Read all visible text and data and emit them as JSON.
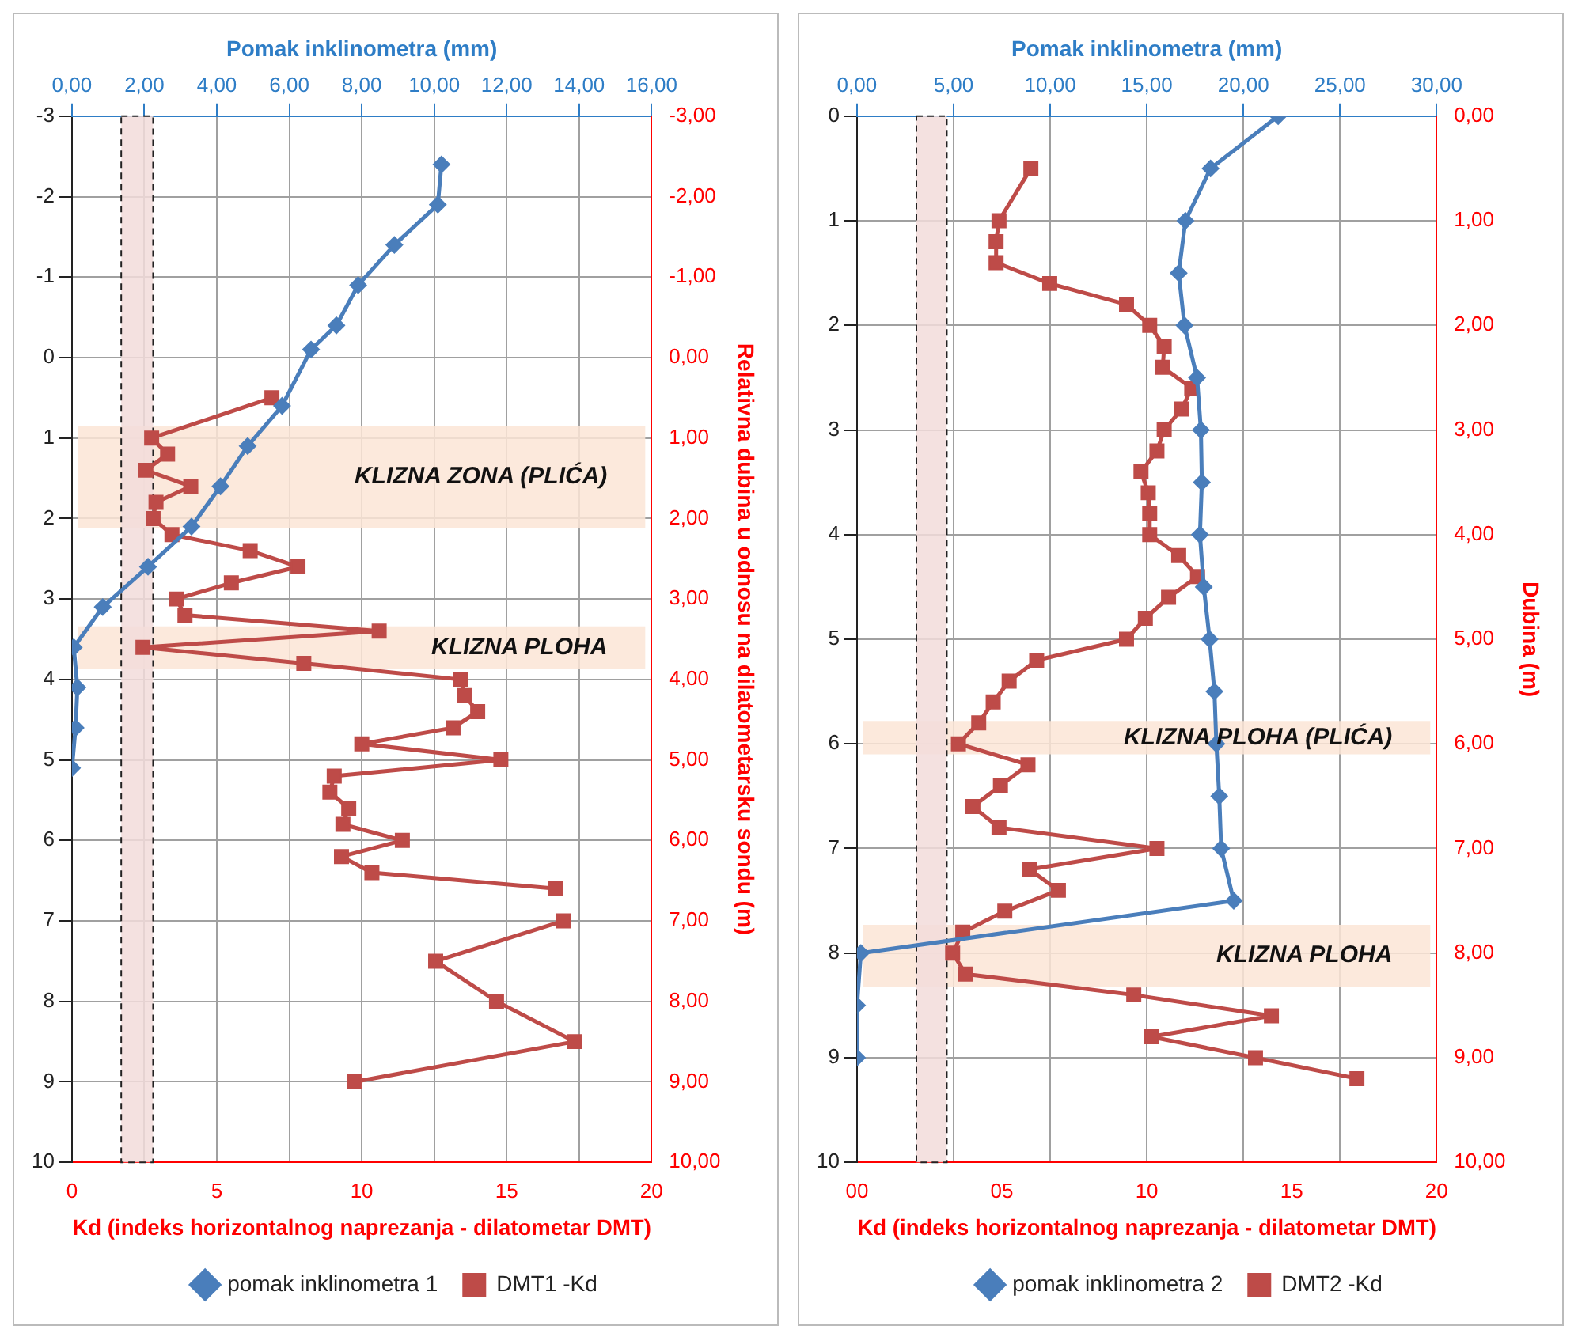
{
  "chart_data": [
    {
      "type": "line",
      "xlabel": "Kd (indeks horizontalnog naprezanja - dilatometar DMT)",
      "x2label": "Pomak inklinometra (mm)",
      "y2label": "Relativna dubina u odnosu na dilatometarsku sondu (m)",
      "xlim": [
        0,
        20
      ],
      "xticks": [
        0,
        5,
        10,
        15,
        20
      ],
      "x2lim": [
        0,
        16
      ],
      "x2ticks": [
        {
          "value": 0,
          "label": "0,00"
        },
        {
          "value": 2,
          "label": "2,00"
        },
        {
          "value": 4,
          "label": "4,00"
        },
        {
          "value": 6,
          "label": "6,00"
        },
        {
          "value": 8,
          "label": "8,00"
        },
        {
          "value": 10,
          "label": "10,00"
        },
        {
          "value": 12,
          "label": "12,00"
        },
        {
          "value": 14,
          "label": "14,00"
        },
        {
          "value": 16,
          "label": "16,00"
        }
      ],
      "ylim": [
        10,
        -3
      ],
      "yticks": [
        -3,
        -2,
        -1,
        0,
        1,
        2,
        3,
        4,
        5,
        6,
        7,
        8,
        9,
        10
      ],
      "y2lim": [
        10,
        -3
      ],
      "y2ticks": [
        {
          "value": -3,
          "label": "-3,00"
        },
        {
          "value": -2,
          "label": "-2,00"
        },
        {
          "value": -1,
          "label": "-1,00"
        },
        {
          "value": 0,
          "label": "0,00"
        },
        {
          "value": 1,
          "label": "1,00"
        },
        {
          "value": 2,
          "label": "2,00"
        },
        {
          "value": 3,
          "label": "3,00"
        },
        {
          "value": 4,
          "label": "4,00"
        },
        {
          "value": 5,
          "label": "5,00"
        },
        {
          "value": 6,
          "label": "6,00"
        },
        {
          "value": 7,
          "label": "7,00"
        },
        {
          "value": 8,
          "label": "8,00"
        },
        {
          "value": 9,
          "label": "9,00"
        },
        {
          "value": 10,
          "label": "10,00"
        }
      ],
      "grid": true,
      "legend": "bottom",
      "bands": [
        {
          "axis": "y",
          "from": 0.85,
          "to": 2.12,
          "label": "KLIZNA ZONA (PLIĆA)",
          "color": "#fbe5d6"
        },
        {
          "axis": "y",
          "from": 3.34,
          "to": 3.87,
          "label": "KLIZNA PLOHA",
          "color": "#fbe5d6"
        },
        {
          "axis": "x",
          "from": 1.7,
          "to": 2.8,
          "color": "#f2dcdb"
        }
      ],
      "series": [
        {
          "name": "pomak inklinometra 1",
          "color": "#4a7ebb",
          "axis": "x2",
          "marker": "diamond",
          "x": [
            10.2,
            10.1,
            8.9,
            7.9,
            7.3,
            6.6,
            5.8,
            4.85,
            4.1,
            3.3,
            2.1,
            0.85,
            0.05,
            0.15,
            0.1,
            0
          ],
          "values": [
            -2.4,
            -1.9,
            -1.4,
            -0.9,
            -0.4,
            -0.1,
            0.6,
            1.1,
            1.6,
            2.1,
            2.6,
            3.1,
            3.6,
            4.1,
            4.6,
            5.1
          ]
        },
        {
          "name": "DMT1 -Kd",
          "color": "#be4b48",
          "marker": "square",
          "x": [
            6.9,
            2.75,
            3.3,
            2.55,
            4.1,
            2.9,
            2.8,
            3.45,
            6.15,
            7.8,
            5.5,
            3.6,
            3.9,
            10.6,
            2.45,
            8.0,
            13.4,
            13.55,
            14.0,
            13.15,
            10.0,
            14.8,
            9.05,
            8.9,
            9.55,
            9.35,
            11.4,
            9.3,
            10.35,
            16.7,
            null,
            16.95,
            12.55,
            14.65,
            17.35,
            9.75
          ],
          "values": [
            0.5,
            1.0,
            1.2,
            1.4,
            1.6,
            1.8,
            2.0,
            2.2,
            2.4,
            2.6,
            2.8,
            3.0,
            3.2,
            3.4,
            3.6,
            3.8,
            4.0,
            4.2,
            4.4,
            4.6,
            4.8,
            5.0,
            5.2,
            5.4,
            5.6,
            5.8,
            6.0,
            6.2,
            6.4,
            6.6,
            null,
            7.0,
            7.5,
            8.0,
            8.5,
            9.0
          ]
        }
      ]
    },
    {
      "type": "line",
      "xlabel": "Kd (indeks horizontalnog naprezanja - dilatometar DMT)",
      "x2label": "Pomak inklinometra (mm)",
      "y2label": "Dubina (m)",
      "xlim": [
        0,
        20
      ],
      "xticks": [
        {
          "value": 0,
          "label": "00"
        },
        {
          "value": 5,
          "label": "05"
        },
        {
          "value": 10,
          "label": "10"
        },
        {
          "value": 15,
          "label": "15"
        },
        {
          "value": 20,
          "label": "20"
        }
      ],
      "x2lim": [
        0,
        30
      ],
      "x2ticks": [
        {
          "value": 0,
          "label": "0,00"
        },
        {
          "value": 5,
          "label": "5,00"
        },
        {
          "value": 10,
          "label": "10,00"
        },
        {
          "value": 15,
          "label": "15,00"
        },
        {
          "value": 20,
          "label": "20,00"
        },
        {
          "value": 25,
          "label": "25,00"
        },
        {
          "value": 30,
          "label": "30,00"
        }
      ],
      "ylim": [
        10,
        0
      ],
      "yticks": [
        0,
        1,
        2,
        3,
        4,
        5,
        6,
        7,
        8,
        9,
        10
      ],
      "y2lim": [
        10,
        0
      ],
      "y2ticks": [
        {
          "value": 0,
          "label": "0,00"
        },
        {
          "value": 1,
          "label": "1,00"
        },
        {
          "value": 2,
          "label": "2,00"
        },
        {
          "value": 3,
          "label": "3,00"
        },
        {
          "value": 4,
          "label": "4,00"
        },
        {
          "value": 5,
          "label": "5,00"
        },
        {
          "value": 6,
          "label": "6,00"
        },
        {
          "value": 7,
          "label": "7,00"
        },
        {
          "value": 8,
          "label": "8,00"
        },
        {
          "value": 9,
          "label": "9,00"
        },
        {
          "value": 10,
          "label": "10,00"
        }
      ],
      "grid": true,
      "legend": "bottom",
      "bands": [
        {
          "axis": "y",
          "from": 5.78,
          "to": 6.1,
          "label": "KLIZNA PLOHA (PLIĆA)",
          "color": "#fbe5d6"
        },
        {
          "axis": "y",
          "from": 7.73,
          "to": 8.32,
          "label": "KLIZNA PLOHA",
          "color": "#fbe5d6"
        },
        {
          "axis": "x",
          "from": 2.05,
          "to": 3.1,
          "color": "#f2dcdb"
        }
      ],
      "series": [
        {
          "name": "pomak inklinometra 2",
          "color": "#4a7ebb",
          "axis": "x2",
          "marker": "diamond",
          "x": [
            21.8,
            18.3,
            17.0,
            16.65,
            16.95,
            17.6,
            17.8,
            17.85,
            17.75,
            17.95,
            18.25,
            18.5,
            18.6,
            18.75,
            18.85,
            19.5,
            0.2,
            0,
            0
          ],
          "values": [
            0,
            0.5,
            1.0,
            1.5,
            2.0,
            2.5,
            3.0,
            3.5,
            4.0,
            4.5,
            5.0,
            5.5,
            6.0,
            6.5,
            7.0,
            7.5,
            8.0,
            8.5,
            9.0
          ]
        },
        {
          "name": "DMT2 -Kd",
          "color": "#be4b48",
          "marker": "square",
          "x": [
            6.0,
            4.9,
            4.8,
            4.8,
            6.65,
            9.3,
            10.1,
            10.6,
            10.55,
            11.55,
            11.2,
            10.6,
            10.35,
            9.8,
            10.05,
            10.1,
            10.1,
            11.1,
            11.75,
            10.75,
            9.95,
            9.3,
            6.2,
            5.25,
            4.7,
            4.2,
            3.5,
            5.9,
            4.95,
            4.0,
            4.9,
            10.35,
            5.95,
            6.95,
            5.1,
            3.65,
            3.3,
            3.75,
            9.55,
            14.3,
            10.15,
            13.75,
            17.25
          ],
          "values": [
            0.5,
            1.0,
            1.2,
            1.4,
            1.6,
            1.8,
            2.0,
            2.2,
            2.4,
            2.6,
            2.8,
            3.0,
            3.2,
            3.4,
            3.6,
            3.8,
            4.0,
            4.2,
            4.4,
            4.6,
            4.8,
            5.0,
            5.2,
            5.4,
            5.6,
            5.8,
            6.0,
            6.2,
            6.4,
            6.6,
            6.8,
            7.0,
            7.2,
            7.4,
            7.6,
            7.8,
            8.0,
            8.2,
            8.4,
            8.6,
            8.8,
            9.0,
            9.2
          ]
        }
      ]
    }
  ]
}
